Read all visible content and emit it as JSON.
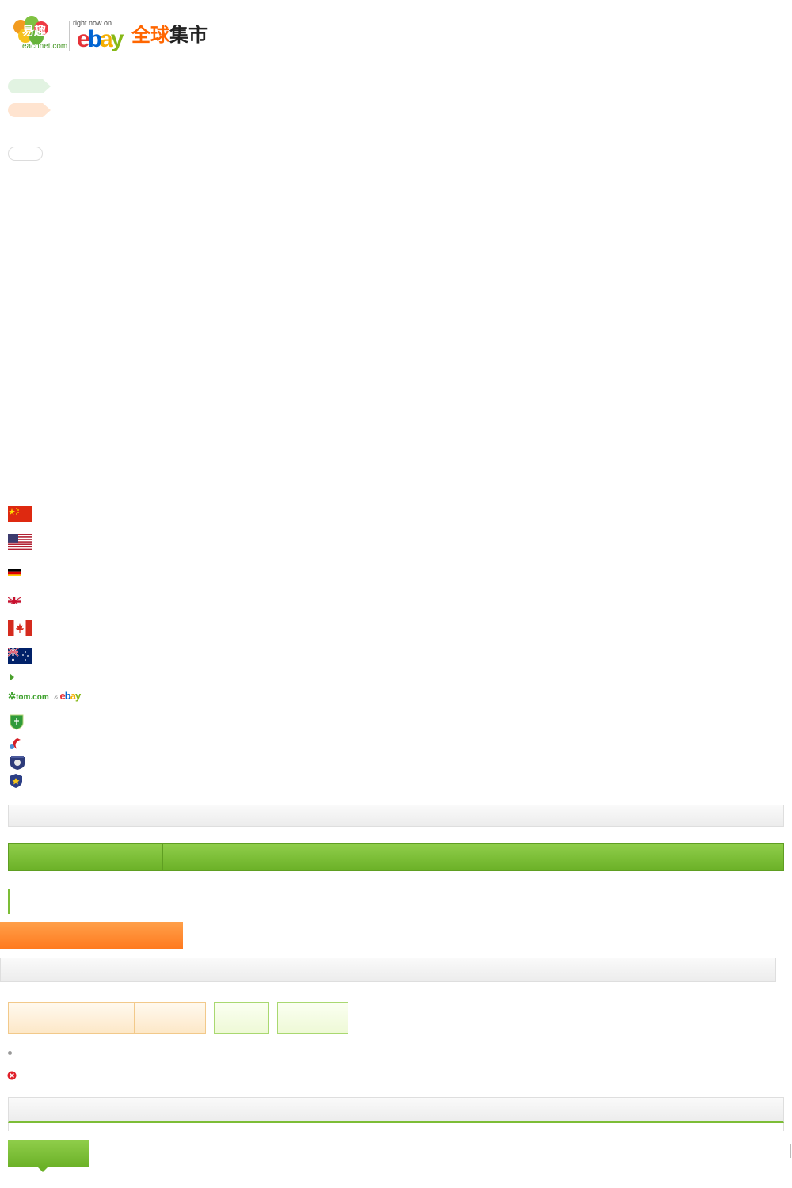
{
  "header": {
    "eachnet_logo_text": "eachnet.com",
    "eachnet_logo_chars": "易趣",
    "ebay_tagline": "right now on",
    "ebay_word": "ebay",
    "title": "全球集市"
  },
  "partners": {
    "tom_logo_text": "tom.com",
    "amp": "&",
    "ebay_word": "ebay"
  },
  "colors": {
    "green_accent": "#7cbd36",
    "orange_accent": "#ff8a2e",
    "gray_bar": "#f0f0f0"
  },
  "icons": {
    "flags": [
      "china-flag-icon",
      "usa-flag-icon",
      "germany-flag-icon",
      "uk-flag-icon",
      "canada-flag-icon",
      "australia-flag-icon"
    ],
    "badges": [
      "shield-badge-icon",
      "swoosh-badge-icon",
      "crest-badge-icon",
      "police-badge-icon"
    ],
    "bullet": "green-triangle-bullet-icon",
    "dot": "gray-dot-icon",
    "error": "red-x-circle-icon"
  }
}
